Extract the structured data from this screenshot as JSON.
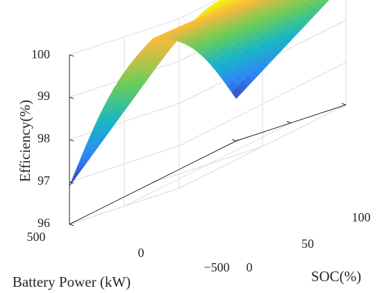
{
  "chart_data": {
    "type": "surface3d",
    "title": "",
    "xlabel": "Battery Power (kW)",
    "ylabel": "SOC(%)",
    "zlabel": "Efficiency(%)",
    "x_ticks": [
      "500",
      "0",
      "−500"
    ],
    "y_ticks": [
      "0",
      "50",
      "100"
    ],
    "z_ticks": [
      "96",
      "97",
      "98",
      "99",
      "100"
    ],
    "xlim": [
      -500,
      500
    ],
    "ylim": [
      0,
      100
    ],
    "zlim": [
      96,
      100
    ],
    "grid": true,
    "colormap": "parula",
    "surface": {
      "battery_power_kw": [
        500,
        0,
        -500
      ],
      "soc_percent": [
        0,
        100
      ],
      "efficiency_percent": [
        [
          96.9,
          99.6
        ],
        [
          99.4,
          99.7
        ],
        [
          97.0,
          98.9
        ]
      ]
    }
  }
}
